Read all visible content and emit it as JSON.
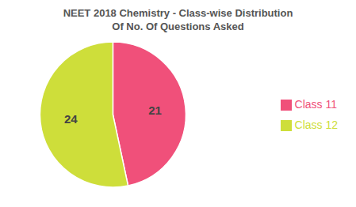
{
  "chart_data": {
    "type": "pie",
    "title": "NEET 2018 Chemistry - Class-wise Distribution",
    "subtitle": "Of No. Of Questions Asked",
    "categories": [
      "Class 11",
      "Class 12"
    ],
    "values": [
      21,
      24
    ],
    "colors": [
      "#F0507A",
      "#CEDE3A"
    ],
    "data_labels": true,
    "legend": "right"
  }
}
